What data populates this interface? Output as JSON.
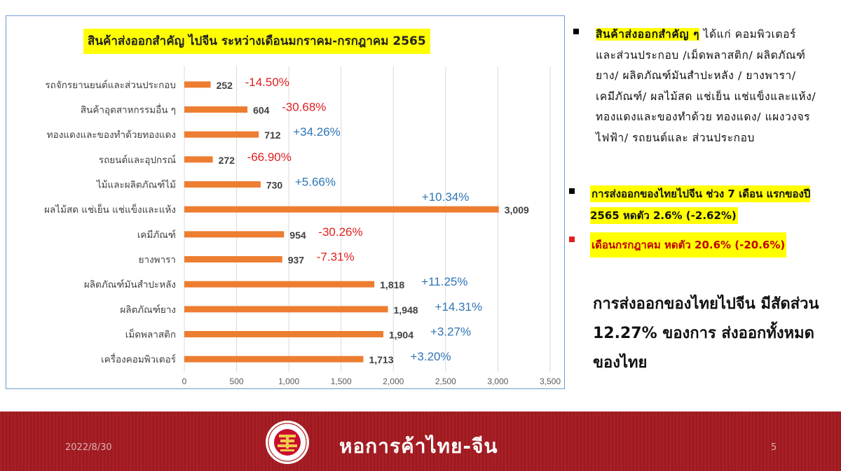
{
  "chart_data": {
    "type": "bar",
    "orientation": "horizontal",
    "title": "สินค้าส่งออกสำคัญ ไปจีน ระหว่างเดือนมกราคม-กรกฎาคม 2565",
    "categories": [
      "รถจักรยานยนต์และส่วนประกอบ",
      "สินค้าอุตสาหกรรมอื่น ๆ",
      "ทองแดงและของทำด้วยทองแดง",
      "รถยนต์และอุปกรณ์",
      "ไม้และผลิตภัณฑ์ไม้",
      "ผลไม้สด แช่เย็น แช่แข็งและแห้ง",
      "เคมีภัณฑ์",
      "ยางพารา",
      "ผลิตภัณฑ์มันสำปะหลัง",
      "ผลิตภัณฑ์ยาง",
      "เม็ดพลาสติก",
      "เครื่องคอมพิวเตอร์"
    ],
    "values": [
      252,
      604,
      712,
      272,
      730,
      3009,
      954,
      937,
      1818,
      1948,
      1904,
      1713
    ],
    "value_labels": [
      "252",
      "604",
      "712",
      "272",
      "730",
      "3,009",
      "954",
      "937",
      "1,818",
      "1,948",
      "1,904",
      "1,713"
    ],
    "growth_labels": [
      "-14.50%",
      "-30.68%",
      "+34.26%",
      "-66.90%",
      "+5.66%",
      "+10.34%",
      "-30.26%",
      "-7.31%",
      "+11.25%",
      "+14.31%",
      "+3.27%",
      "+3.20%"
    ],
    "x_ticks": [
      "0",
      "500",
      "1,000",
      "1,500",
      "2,000",
      "2,500",
      "3,000",
      "3,500"
    ],
    "xlim": [
      0,
      3500
    ],
    "grid": true,
    "colors": {
      "bar": "#ed7d31",
      "negative": "#e02020",
      "positive": "#2e75b6",
      "value_label": "#404040",
      "grid": "#d9d9d9"
    }
  },
  "notes": {
    "bullet1_highlight": "สินค้าส่งออกสำคัญ ๆ",
    "bullet1_text": " ได้แก่ คอมพิวเตอร์ และส่วนประกอบ /เม็ดพลาสติก/ ผลิตภัณฑ์ยาง/ ผลิตภัณฑ์มันสำปะหลัง / ยางพารา/ เคมีภัณฑ์/ ผลไม้สด แช่เย็น แช่แข็งและแห้ง/ทองแดงและของทำด้วย ทองแดง/ แผงวงจรไฟฟ้า/ รถยนต์และ ส่วนประกอบ",
    "bullet2_text": "การส่งออกของไทยไปจีน ช่วง 7 เดือน แรกของปี 2565 หดตัว 2.6% (-2.62%)",
    "bullet3_text": "เดือนกรกฎาคม หดตัว 20.6% (-20.6%)",
    "share_text": "การส่งออกของไทยไปจีน มีสัดส่วน 12.27% ของการ ส่งออกทั้งหมดของไทย"
  },
  "footer": {
    "date": "2022/8/30",
    "organization": "หอการค้าไทย-จีน",
    "page_number": "5",
    "background_color": "#a81f25"
  }
}
